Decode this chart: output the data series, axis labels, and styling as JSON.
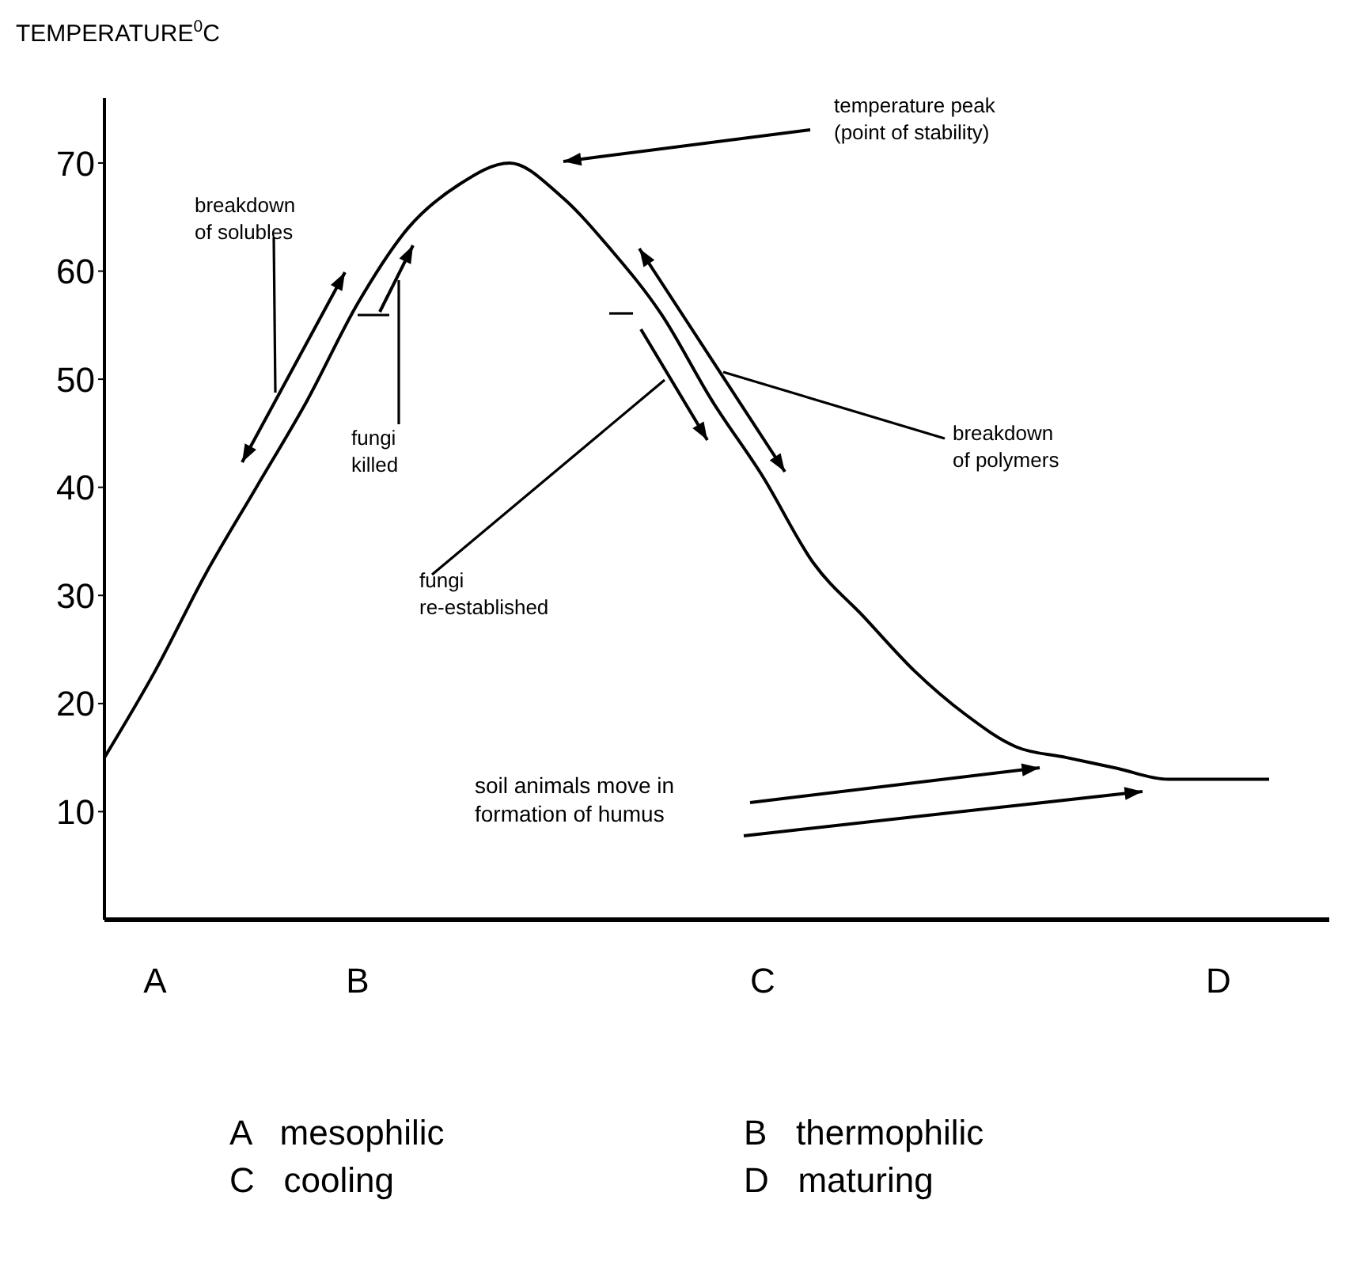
{
  "chart_data": {
    "type": "line",
    "ylabel": "TEMPERATURE$^{0}$C",
    "categories": [
      null,
      "A",
      null,
      null,
      null,
      "B",
      null,
      null,
      null,
      null,
      null,
      null,
      null,
      "C",
      null,
      null,
      null,
      null,
      null,
      null,
      null,
      null,
      "D",
      null
    ],
    "series": [
      {
        "color": "#000000",
        "values": [
          15,
          23,
          32,
          40,
          48,
          57,
          64,
          68,
          70,
          67,
          62,
          56,
          48,
          41,
          33,
          28,
          23,
          19,
          16,
          15,
          14,
          13,
          13,
          13
        ]
      }
    ],
    "ylim": [
      0,
      76
    ],
    "yticks": [
      10,
      20,
      30,
      40,
      50,
      60,
      70
    ],
    "marker": "none",
    "line_style": "solid",
    "grid": false,
    "legend": false,
    "annotations": [
      "breakdown\nof solubles",
      "temperature peak\n(point of stability)",
      "fungi\nkilled",
      "fungi\nre-established",
      "breakdown\nof polymers",
      "soil animals move in\nformation of humus",
      "A   mesophilic",
      "B   thermophilic",
      "C   cooling",
      "D   maturing"
    ]
  }
}
